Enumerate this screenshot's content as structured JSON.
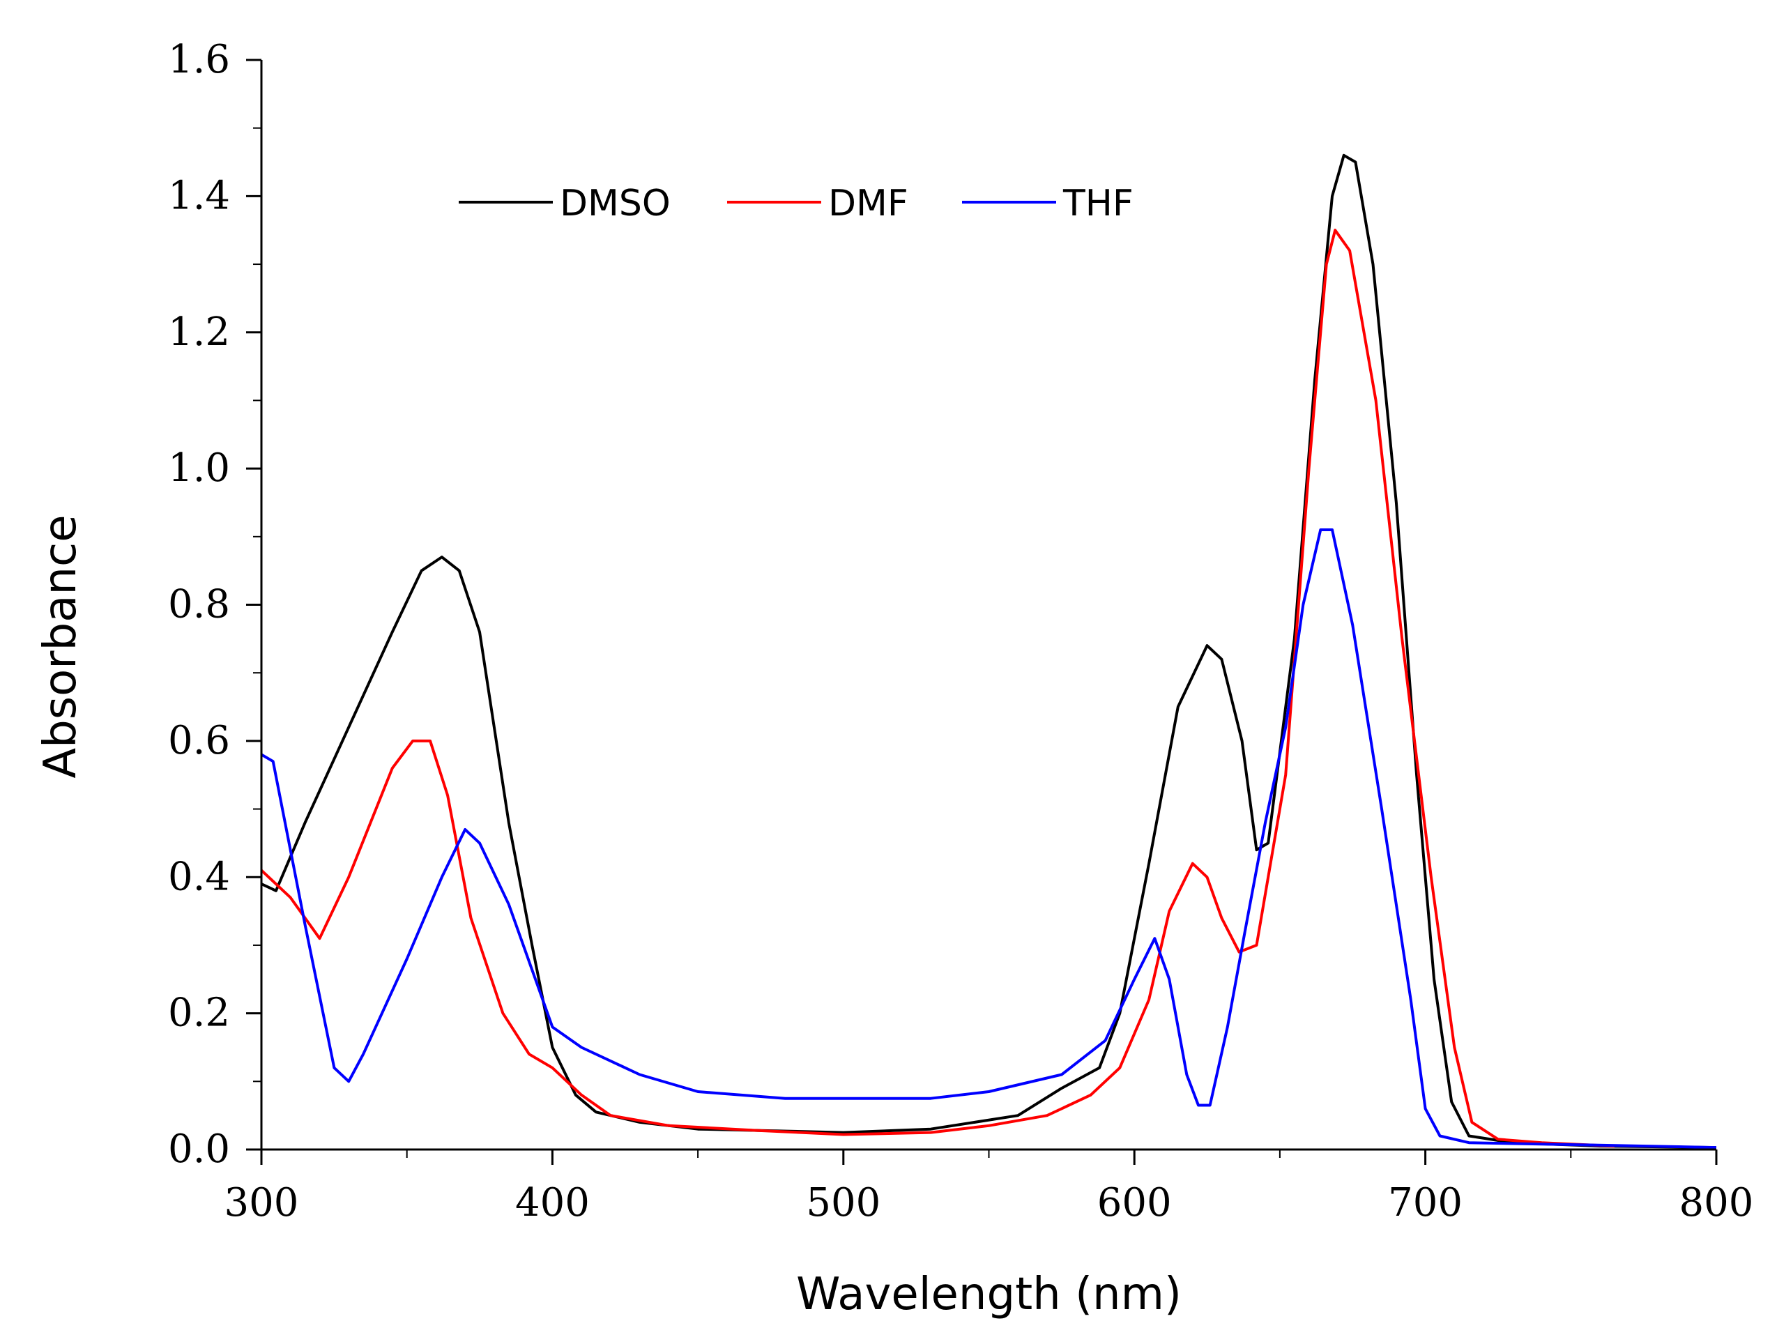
{
  "chart_data": {
    "type": "line",
    "title": "",
    "xlabel": "Wavelength (nm)",
    "ylabel": "Absorbance",
    "xlim": [
      300,
      800
    ],
    "ylim": [
      0.0,
      1.6
    ],
    "xticks": [
      300,
      400,
      500,
      600,
      700,
      800
    ],
    "xtick_labels": [
      "300",
      "400",
      "500",
      "600",
      "700",
      "800"
    ],
    "yticks": [
      0.0,
      0.2,
      0.4,
      0.6,
      0.8,
      1.0,
      1.2,
      1.4,
      1.6
    ],
    "ytick_labels": [
      "0.0",
      "0.2",
      "0.4",
      "0.6",
      "0.8",
      "1.0",
      "1.2",
      "1.4",
      "1.6"
    ],
    "grid": false,
    "legend_position": "top-center",
    "series": [
      {
        "name": "DMSO",
        "color": "#000000",
        "points": [
          [
            300,
            0.39
          ],
          [
            305,
            0.38
          ],
          [
            315,
            0.48
          ],
          [
            330,
            0.62
          ],
          [
            345,
            0.76
          ],
          [
            355,
            0.85
          ],
          [
            362,
            0.87
          ],
          [
            368,
            0.85
          ],
          [
            375,
            0.76
          ],
          [
            385,
            0.48
          ],
          [
            393,
            0.3
          ],
          [
            400,
            0.15
          ],
          [
            408,
            0.08
          ],
          [
            415,
            0.055
          ],
          [
            430,
            0.04
          ],
          [
            450,
            0.03
          ],
          [
            470,
            0.028
          ],
          [
            500,
            0.025
          ],
          [
            530,
            0.03
          ],
          [
            560,
            0.05
          ],
          [
            575,
            0.09
          ],
          [
            588,
            0.12
          ],
          [
            595,
            0.2
          ],
          [
            605,
            0.42
          ],
          [
            615,
            0.65
          ],
          [
            625,
            0.74
          ],
          [
            630,
            0.72
          ],
          [
            637,
            0.6
          ],
          [
            642,
            0.44
          ],
          [
            646,
            0.45
          ],
          [
            655,
            0.75
          ],
          [
            662,
            1.13
          ],
          [
            668,
            1.4
          ],
          [
            672,
            1.46
          ],
          [
            676,
            1.45
          ],
          [
            682,
            1.3
          ],
          [
            690,
            0.95
          ],
          [
            697,
            0.55
          ],
          [
            703,
            0.25
          ],
          [
            709,
            0.07
          ],
          [
            715,
            0.02
          ],
          [
            730,
            0.01
          ],
          [
            760,
            0.005
          ],
          [
            800,
            0.003
          ]
        ]
      },
      {
        "name": "DMF",
        "color": "#ff0000",
        "points": [
          [
            300,
            0.41
          ],
          [
            310,
            0.37
          ],
          [
            320,
            0.31
          ],
          [
            330,
            0.4
          ],
          [
            345,
            0.56
          ],
          [
            352,
            0.6
          ],
          [
            358,
            0.6
          ],
          [
            364,
            0.52
          ],
          [
            372,
            0.34
          ],
          [
            383,
            0.2
          ],
          [
            392,
            0.14
          ],
          [
            400,
            0.12
          ],
          [
            410,
            0.08
          ],
          [
            420,
            0.05
          ],
          [
            440,
            0.035
          ],
          [
            470,
            0.028
          ],
          [
            500,
            0.022
          ],
          [
            530,
            0.025
          ],
          [
            550,
            0.035
          ],
          [
            570,
            0.05
          ],
          [
            585,
            0.08
          ],
          [
            595,
            0.12
          ],
          [
            605,
            0.22
          ],
          [
            612,
            0.35
          ],
          [
            620,
            0.42
          ],
          [
            625,
            0.4
          ],
          [
            630,
            0.34
          ],
          [
            636,
            0.29
          ],
          [
            642,
            0.3
          ],
          [
            652,
            0.55
          ],
          [
            660,
            1.0
          ],
          [
            666,
            1.3
          ],
          [
            669,
            1.35
          ],
          [
            674,
            1.32
          ],
          [
            683,
            1.1
          ],
          [
            692,
            0.75
          ],
          [
            702,
            0.4
          ],
          [
            710,
            0.15
          ],
          [
            716,
            0.04
          ],
          [
            725,
            0.015
          ],
          [
            740,
            0.01
          ],
          [
            765,
            0.005
          ]
        ]
      },
      {
        "name": "THF",
        "color": "#0000ff",
        "points": [
          [
            300,
            0.58
          ],
          [
            304,
            0.57
          ],
          [
            315,
            0.33
          ],
          [
            325,
            0.12
          ],
          [
            330,
            0.1
          ],
          [
            335,
            0.14
          ],
          [
            350,
            0.28
          ],
          [
            362,
            0.4
          ],
          [
            370,
            0.47
          ],
          [
            375,
            0.45
          ],
          [
            385,
            0.36
          ],
          [
            395,
            0.24
          ],
          [
            400,
            0.18
          ],
          [
            410,
            0.15
          ],
          [
            430,
            0.11
          ],
          [
            450,
            0.085
          ],
          [
            480,
            0.075
          ],
          [
            510,
            0.075
          ],
          [
            530,
            0.075
          ],
          [
            550,
            0.085
          ],
          [
            575,
            0.11
          ],
          [
            590,
            0.16
          ],
          [
            600,
            0.25
          ],
          [
            607,
            0.31
          ],
          [
            612,
            0.25
          ],
          [
            618,
            0.11
          ],
          [
            622,
            0.065
          ],
          [
            626,
            0.065
          ],
          [
            632,
            0.18
          ],
          [
            638,
            0.32
          ],
          [
            645,
            0.48
          ],
          [
            652,
            0.62
          ],
          [
            658,
            0.8
          ],
          [
            664,
            0.91
          ],
          [
            668,
            0.91
          ],
          [
            675,
            0.77
          ],
          [
            685,
            0.5
          ],
          [
            695,
            0.22
          ],
          [
            700,
            0.06
          ],
          [
            705,
            0.02
          ],
          [
            715,
            0.01
          ],
          [
            740,
            0.008
          ],
          [
            800,
            0.003
          ]
        ]
      }
    ]
  }
}
